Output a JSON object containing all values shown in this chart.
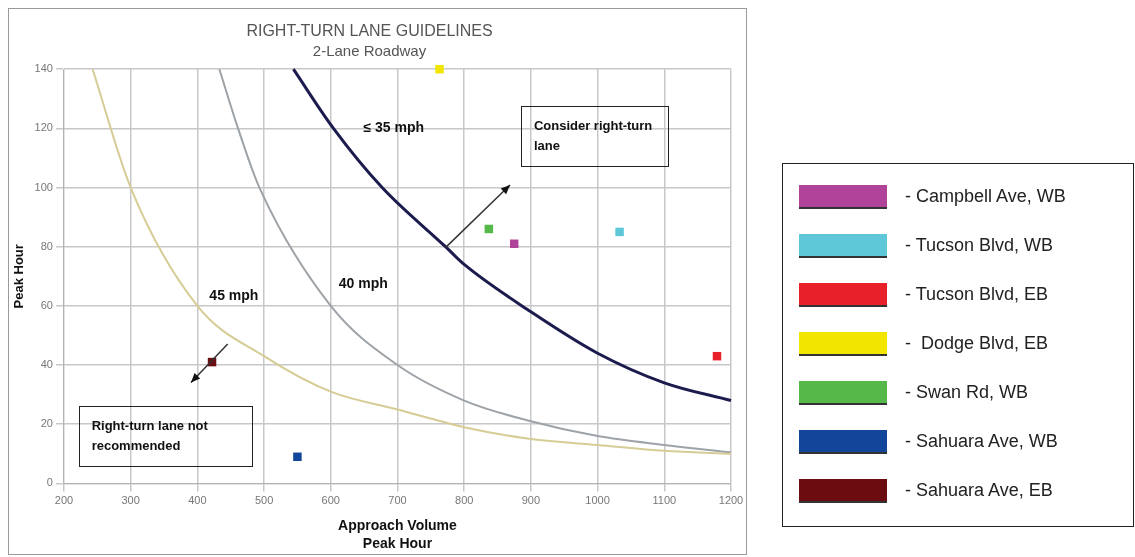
{
  "chart_data": {
    "type": "line",
    "title": "RIGHT-TURN LANE GUIDELINES",
    "subtitle": "2-Lane Roadway",
    "xlabel": "Approach Volume\nPeak Hour",
    "ylabel": "Peak Hour",
    "xlim": [
      200,
      1200
    ],
    "xticks": [
      200,
      300,
      400,
      500,
      600,
      700,
      800,
      900,
      1000,
      1100,
      1200
    ],
    "ylim": [
      0,
      140
    ],
    "yticks": [
      0,
      20,
      40,
      60,
      80,
      100,
      120,
      140
    ],
    "grid": true,
    "legend": "right",
    "line_style": "solid",
    "annotations": [
      "Consider right-turn lane",
      "Right-turn lane not recommended"
    ],
    "series": [
      {
        "name": "45 mph",
        "color": "#d6cc95",
        "x": [
          243,
          300,
          400,
          500,
          600,
          700,
          800,
          900,
          1000,
          1100,
          1200
        ],
        "values": [
          140,
          100,
          60,
          43,
          31,
          25,
          19,
          15,
          13,
          11,
          10
        ]
      },
      {
        "name": "40 mph",
        "color": "#9ea3a8",
        "x": [
          433,
          461,
          493,
          600,
          700,
          800,
          900,
          1000,
          1100,
          1200
        ],
        "values": [
          140,
          120,
          100,
          60,
          40,
          28,
          21,
          16,
          13,
          10.5
        ]
      },
      {
        "name": "≤ 35 mph",
        "color": "#1c1b4d",
        "x": [
          544,
          604,
          677,
          772,
          800,
          900,
          1000,
          1100,
          1200
        ],
        "values": [
          140,
          120,
          100,
          80,
          74,
          58,
          44,
          34,
          28
        ]
      },
      {
        "name": "- Campbell Ave, WB",
        "type": "scatter",
        "marker": "square",
        "color": "#b0449a",
        "x": [
          875
        ],
        "values": [
          81
        ]
      },
      {
        "name": "- Tucson Blvd, WB",
        "type": "scatter",
        "marker": "square",
        "color": "#5ec8d8",
        "x": [
          1033
        ],
        "values": [
          85
        ]
      },
      {
        "name": "- Tucson Blvd, EB",
        "type": "scatter",
        "marker": "square",
        "color": "#e8202a",
        "x": [
          1179
        ],
        "values": [
          43
        ]
      },
      {
        "name": "-  Dodge Blvd, EB",
        "type": "scatter",
        "marker": "square",
        "color": "#f2e600",
        "x": [
          763
        ],
        "values": [
          140
        ]
      },
      {
        "name": "- Swan Rd, WB",
        "type": "scatter",
        "marker": "square",
        "color": "#56b848",
        "x": [
          837
        ],
        "values": [
          86
        ]
      },
      {
        "name": "- Sahuara Ave, WB",
        "type": "scatter",
        "marker": "square",
        "color": "#12469a",
        "x": [
          550
        ],
        "values": [
          9
        ]
      },
      {
        "name": "- Sahuara Ave, EB",
        "type": "scatter",
        "marker": "square",
        "color": "#6b0c10",
        "x": [
          422
        ],
        "values": [
          41
        ]
      }
    ]
  }
}
